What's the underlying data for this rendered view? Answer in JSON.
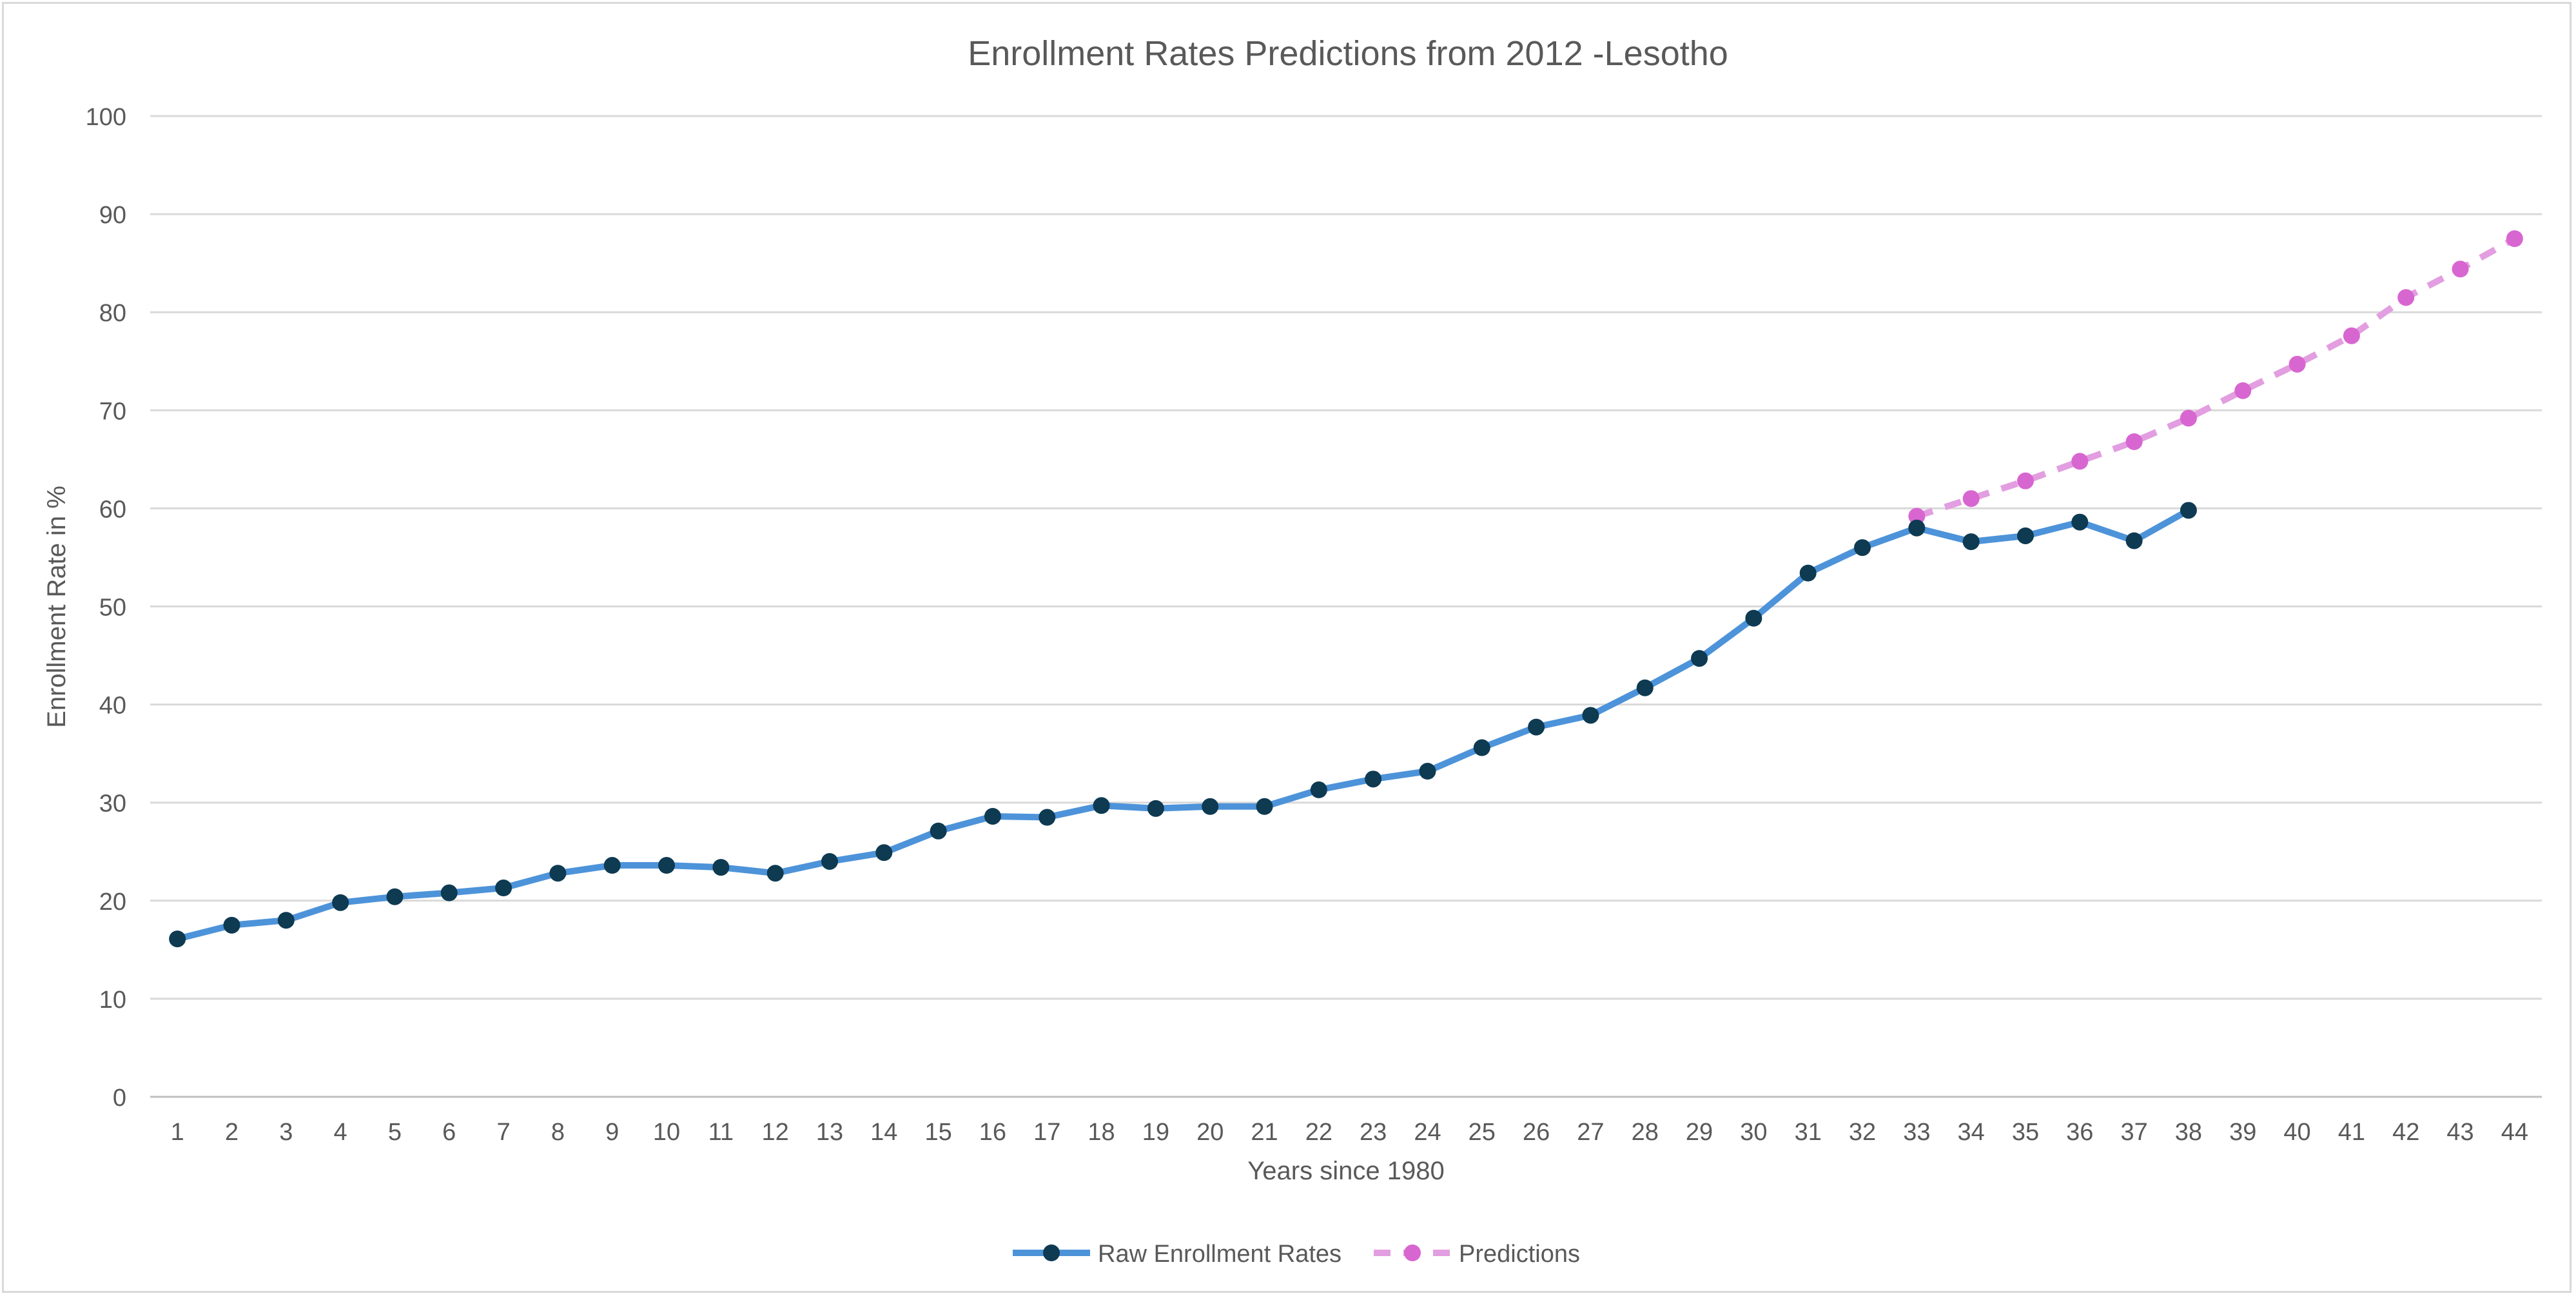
{
  "chart_data": {
    "type": "line",
    "title": "Enrollment Rates Predictions from 2012 -Lesotho",
    "xlabel": "Years since 1980",
    "ylabel": "Enrollment Rate in %",
    "x_categories": [
      "1",
      "2",
      "3",
      "4",
      "5",
      "6",
      "7",
      "8",
      "9",
      "10",
      "11",
      "12",
      "13",
      "14",
      "15",
      "16",
      "17",
      "18",
      "19",
      "20",
      "21",
      "22",
      "23",
      "24",
      "25",
      "26",
      "27",
      "28",
      "29",
      "30",
      "31",
      "32",
      "33",
      "34",
      "35",
      "36",
      "37",
      "38",
      "39",
      "40",
      "41",
      "42",
      "43",
      "44"
    ],
    "y_ticks": [
      "0",
      "10",
      "20",
      "30",
      "40",
      "50",
      "60",
      "70",
      "80",
      "90",
      "100"
    ],
    "ylim": [
      0,
      100
    ],
    "grid": true,
    "legend_position": "bottom",
    "series": [
      {
        "name": "Raw Enrollment Rates",
        "color": "#4d93d9",
        "marker_color": "#0e3a52",
        "line_style": "solid",
        "x": [
          1,
          2,
          3,
          4,
          5,
          6,
          7,
          8,
          9,
          10,
          11,
          12,
          13,
          14,
          15,
          16,
          17,
          18,
          19,
          20,
          21,
          22,
          23,
          24,
          25,
          26,
          27,
          28,
          29,
          30,
          31,
          32,
          33,
          34,
          35,
          36,
          37,
          38
        ],
        "values": [
          16.1,
          17.5,
          18.0,
          19.8,
          20.4,
          20.8,
          21.3,
          22.8,
          23.6,
          23.6,
          23.4,
          22.8,
          24.0,
          24.9,
          27.1,
          28.6,
          28.5,
          29.7,
          29.4,
          29.6,
          29.6,
          31.3,
          32.4,
          33.2,
          35.6,
          37.7,
          38.9,
          41.7,
          44.7,
          48.8,
          53.4,
          56.0,
          58.0,
          56.6,
          57.2,
          58.6,
          56.7,
          59.8
        ]
      },
      {
        "name": "Predictions",
        "color": "#e29ee0",
        "marker_color": "#d866d0",
        "line_style": "dashed",
        "x": [
          33,
          34,
          35,
          36,
          37,
          38,
          39,
          40,
          41,
          42,
          43,
          44
        ],
        "values": [
          59.2,
          61.0,
          62.8,
          64.8,
          66.8,
          69.2,
          72.0,
          74.7,
          77.6,
          81.5,
          84.4,
          87.5
        ]
      }
    ]
  }
}
